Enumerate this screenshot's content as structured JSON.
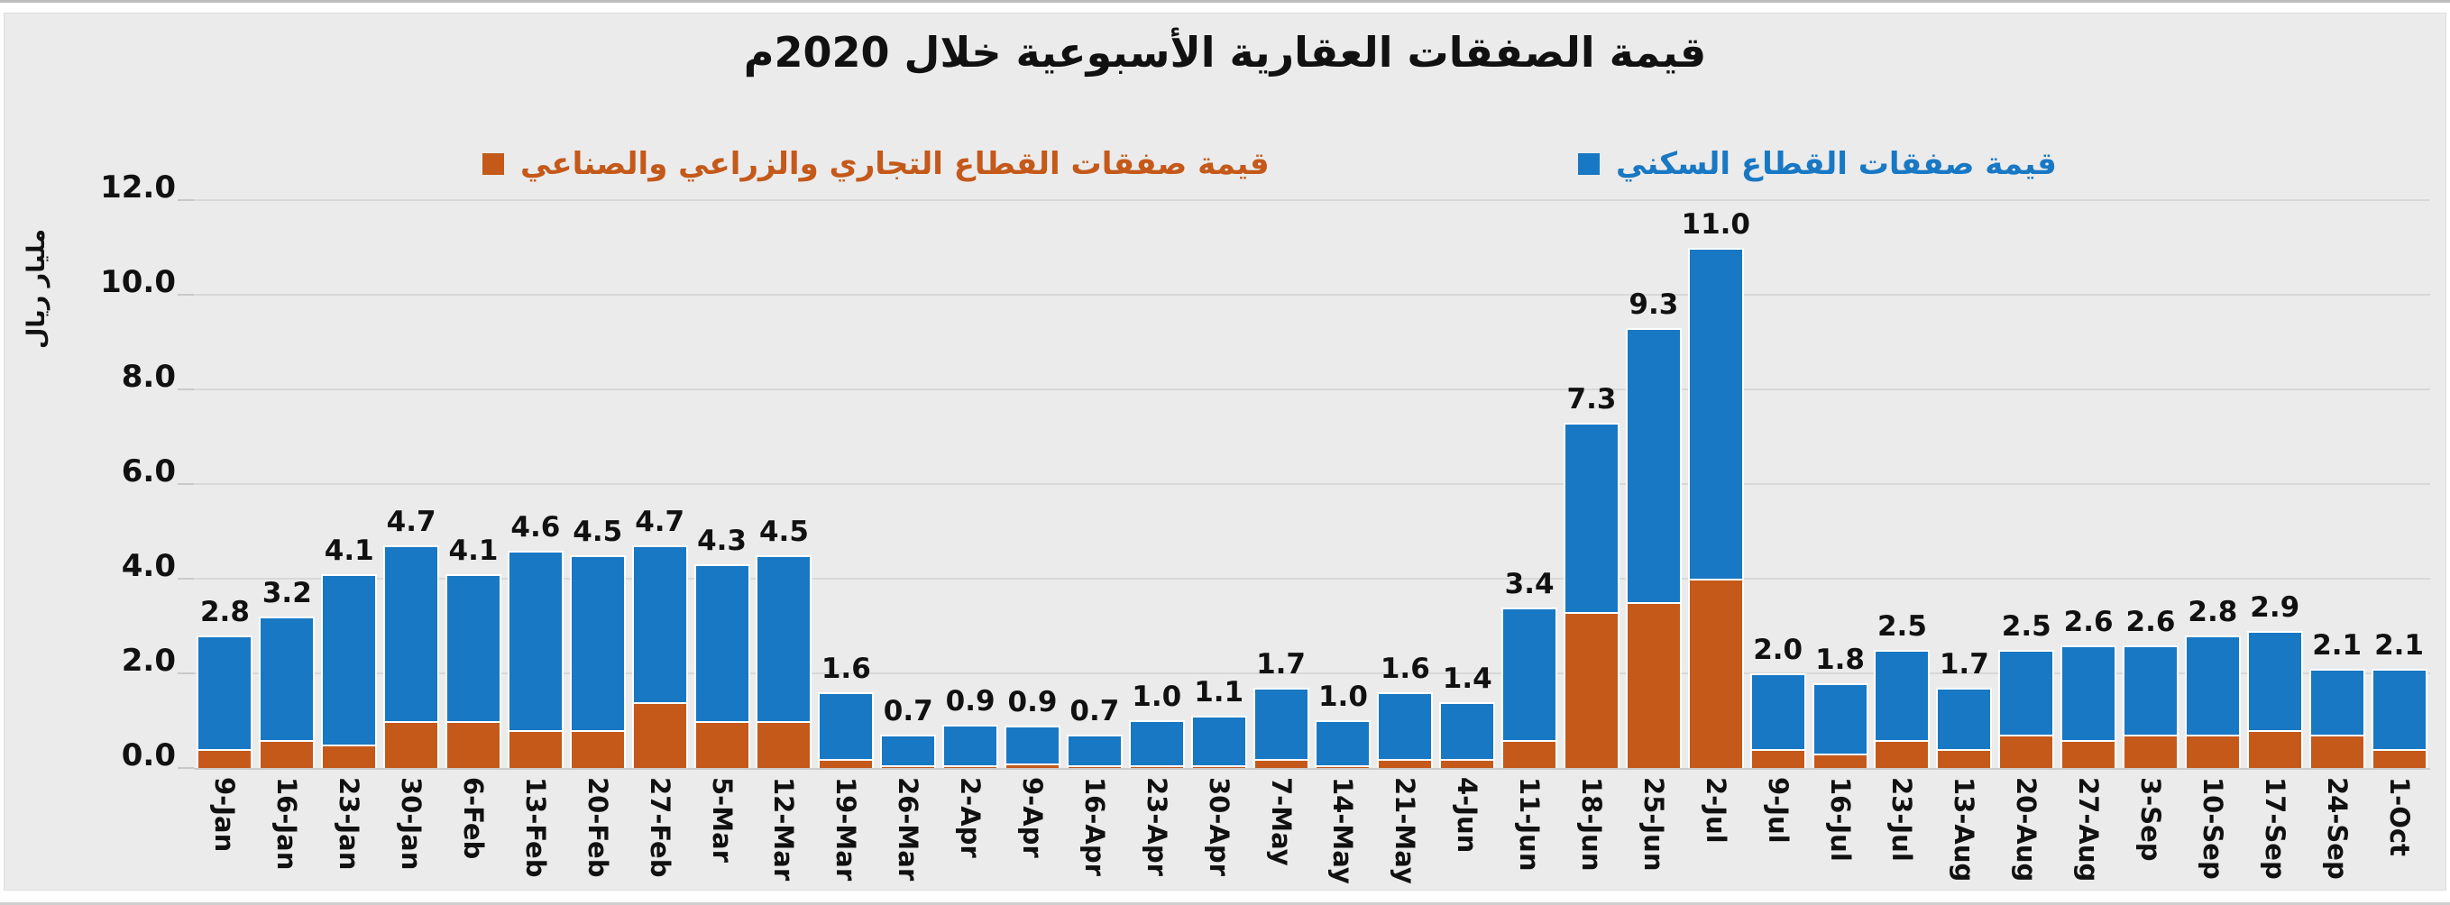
{
  "chart_data": {
    "type": "bar",
    "stacked": true,
    "title": "قيمة الصفقات العقارية الأسبوعية خلال 2020م",
    "xlabel": "",
    "ylabel": "مليار ريال",
    "ylim": [
      0,
      12
    ],
    "ytick_step": 2,
    "grid": true,
    "legend_position": "top",
    "categories": [
      "9-Jan",
      "16-Jan",
      "23-Jan",
      "30-Jan",
      "6-Feb",
      "13-Feb",
      "20-Feb",
      "27-Feb",
      "5-Mar",
      "12-Mar",
      "19-Mar",
      "26-Mar",
      "2-Apr",
      "9-Apr",
      "16-Apr",
      "23-Apr",
      "30-Apr",
      "7-May",
      "14-May",
      "21-May",
      "4-Jun",
      "11-Jun",
      "18-Jun",
      "25-Jun",
      "2-Jul",
      "9-Jul",
      "16-Jul",
      "23-Jul",
      "13-Aug",
      "20-Aug",
      "27-Aug",
      "3-Sep",
      "10-Sep",
      "17-Sep",
      "24-Sep",
      "1-Oct"
    ],
    "series": [
      {
        "name": "قيمة صفقات القطاع السكني",
        "color": "#1878c4",
        "values": [
          2.4,
          2.6,
          3.6,
          3.7,
          3.1,
          3.8,
          3.7,
          3.3,
          3.3,
          3.5,
          1.4,
          0.65,
          0.85,
          0.8,
          0.65,
          0.95,
          1.05,
          1.5,
          0.95,
          1.4,
          1.2,
          2.8,
          4.0,
          5.8,
          7.0,
          1.6,
          1.5,
          1.9,
          1.3,
          1.8,
          2.0,
          1.9,
          2.1,
          2.1,
          1.4,
          1.7
        ]
      },
      {
        "name": "قيمة صفقات القطاع التجاري والزراعي والصناعي",
        "color": "#c4591a",
        "values": [
          0.4,
          0.6,
          0.5,
          1.0,
          1.0,
          0.8,
          0.8,
          1.4,
          1.0,
          1.0,
          0.2,
          0.05,
          0.05,
          0.1,
          0.05,
          0.05,
          0.05,
          0.2,
          0.05,
          0.2,
          0.2,
          0.6,
          3.3,
          3.5,
          4.0,
          0.4,
          0.3,
          0.6,
          0.4,
          0.7,
          0.6,
          0.7,
          0.7,
          0.8,
          0.7,
          0.4
        ]
      }
    ],
    "totals": [
      2.8,
      3.2,
      4.1,
      4.7,
      4.1,
      4.6,
      4.5,
      4.7,
      4.3,
      4.5,
      1.6,
      0.7,
      0.9,
      0.9,
      0.7,
      1.0,
      1.1,
      1.7,
      1.0,
      1.6,
      1.4,
      3.4,
      7.3,
      9.3,
      11.0,
      2.0,
      1.8,
      2.5,
      1.7,
      2.5,
      2.6,
      2.6,
      2.8,
      2.9,
      2.1,
      2.1
    ],
    "total_label_decimals": 1,
    "ytick_label_decimals": 1
  },
  "colors": {
    "residential_blue": "#1878c4",
    "commercial_orange": "#c4591a",
    "panel_background": "#ebebeb",
    "gridline": "#d8d8d8",
    "text": "#111111"
  }
}
